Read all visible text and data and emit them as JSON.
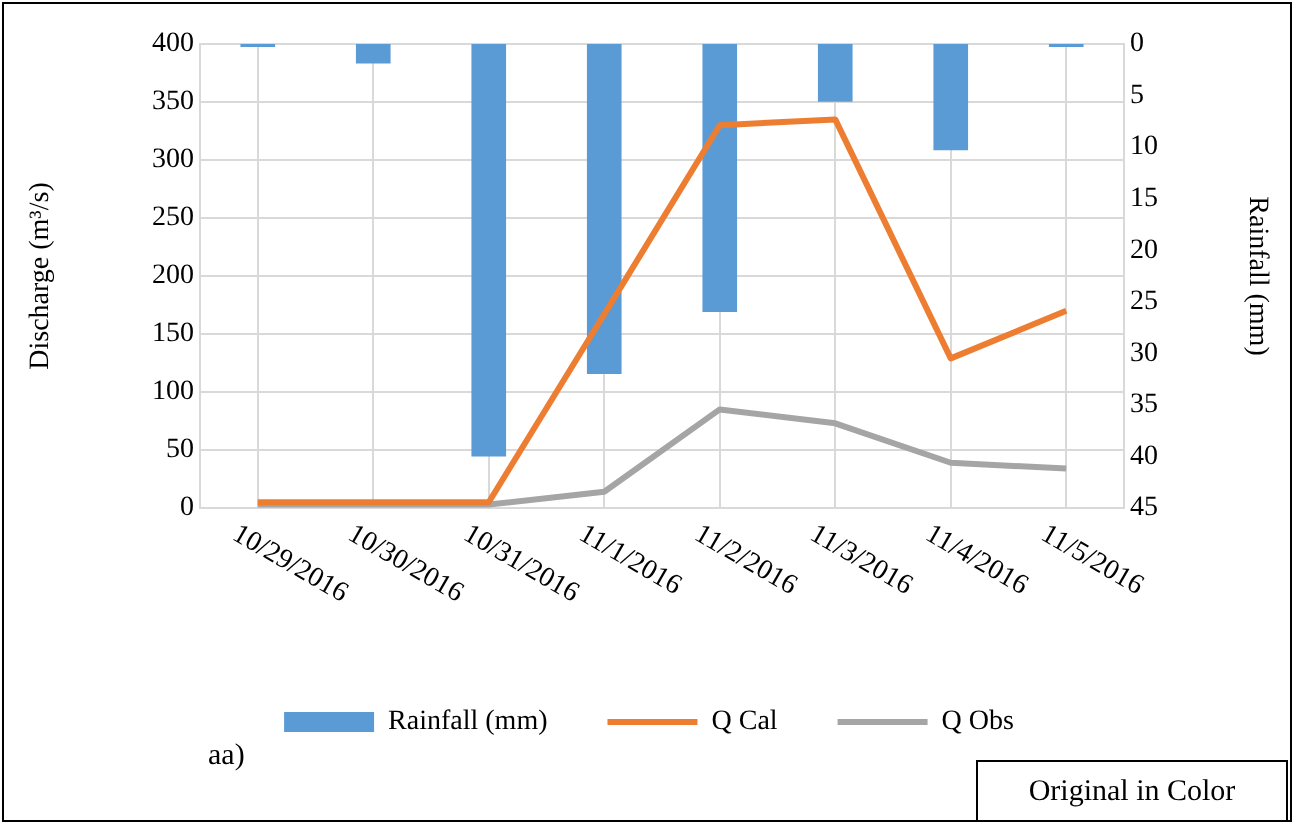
{
  "chart_data": {
    "type": "line",
    "ylabel": "Discharge (m³/s)",
    "y2label": "Rainfall (mm)",
    "categories": [
      "10/29/2016",
      "10/30/2016",
      "10/31/2016",
      "11/1/2016",
      "11/2/2016",
      "11/3/2016",
      "11/4/2016",
      "11/5/2016"
    ],
    "series": [
      {
        "name": "Rainfall (mm)",
        "type": "bar",
        "axis": "y2",
        "color": "#5b9bd5",
        "values": [
          0.3,
          1.9,
          40,
          32,
          26,
          5.6,
          10.3,
          0.3
        ]
      },
      {
        "name": "Q Cal",
        "color": "#ed7d31",
        "values": [
          5,
          5,
          5,
          167,
          330,
          335,
          129,
          170
        ]
      },
      {
        "name": "Q Obs",
        "color": "#a5a5a5",
        "values": [
          3,
          3,
          3,
          14,
          85,
          73,
          39,
          34
        ]
      }
    ],
    "ylim": [
      0,
      400
    ],
    "yticks": [
      0,
      50,
      100,
      150,
      200,
      250,
      300,
      350,
      400
    ],
    "y2lim": [
      45,
      0
    ],
    "y2ticks": [
      0,
      5,
      10,
      15,
      20,
      25,
      30,
      35,
      40,
      45
    ],
    "grid": true,
    "legend": "bottom",
    "marker": "none",
    "annotations": [
      "aa)",
      "Original in Color"
    ]
  }
}
